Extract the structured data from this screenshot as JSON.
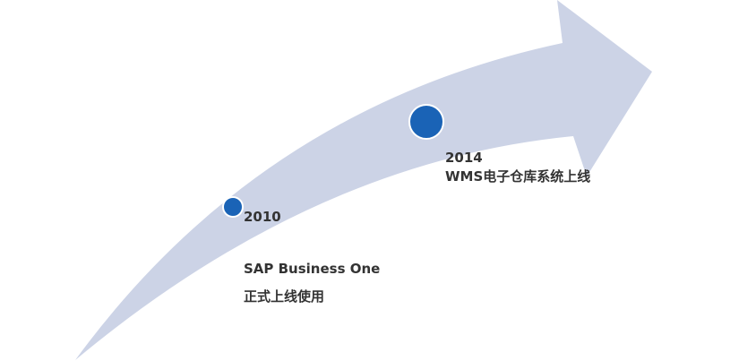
{
  "colors": {
    "arrow": "#ccd3e6",
    "marker": "#1a63b6",
    "text": "#333333"
  },
  "milestones": [
    {
      "year": "2010",
      "line1": "SAP Business One",
      "line2": "正式上线使用"
    },
    {
      "year": "2014",
      "line1": "WMS电子仓库系统上线"
    }
  ]
}
